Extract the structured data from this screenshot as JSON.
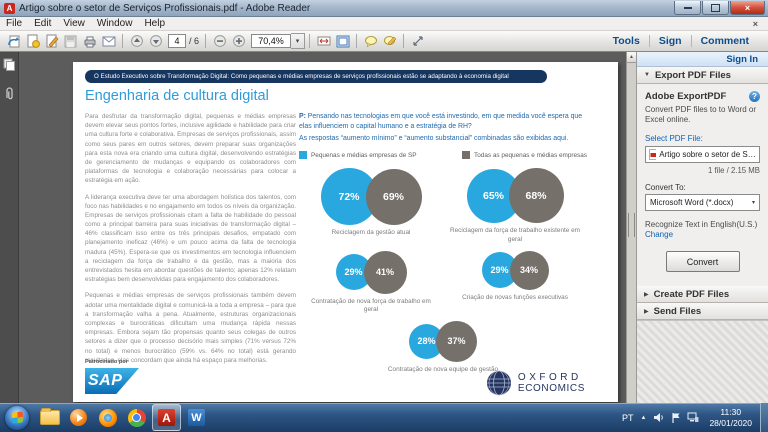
{
  "window": {
    "title": "Artigo sobre o setor de Serviços Profissionais.pdf - Adobe Reader"
  },
  "menu": {
    "items": [
      "File",
      "Edit",
      "View",
      "Window",
      "Help"
    ]
  },
  "toolbar": {
    "page_current": "4",
    "page_total": "/ 6",
    "zoom_level": "70,4%"
  },
  "tabs": {
    "tools": "Tools",
    "sign": "Sign",
    "comment": "Comment"
  },
  "icons": {
    "collapse": "▼",
    "expand": "▶",
    "dropdown": "▾",
    "tray_up": "▲",
    "close_glyph": "×",
    "help_glyph": "?",
    "scroll_up": "▲",
    "reader_glyph": "A",
    "word_glyph": "W",
    "sign_in_label": "Sign In"
  },
  "right_panel": {
    "sign_in": "Sign In",
    "export_section": "Export PDF Files",
    "create_section": "Create PDF Files",
    "send_section": "Send Files",
    "export": {
      "app_title": "Adobe ExportPDF",
      "description": "Convert PDF files to to Word or Excel online.",
      "select_label": "Select PDF File:",
      "file_name": "Artigo sobre o setor de Serviços...",
      "file_meta": "1 file / 2.15 MB",
      "convert_to_label": "Convert To:",
      "convert_format": "Microsoft Word (*.docx)",
      "recognize_text": "Recognize Text in English(U.S.)",
      "change_link": "Change",
      "convert_button": "Convert"
    }
  },
  "document": {
    "banner": "O Estudo Executivo sobre Transformação Digital: Como pequenas e médias empresas de serviços profissionais estão se adaptando à economia digital",
    "title": "Engenharia de cultura digital",
    "paragraphs": [
      "Para desfrutar da transformação digital, pequenas e médias empresas devem elevar seus pontos fortes, inclusive agilidade e habilidade para criar uma cultura forte e colaborativa. Empresas de serviços profissionais, assim como seus pares em outros setores, devem preparar suas organizações para esta nova era criando uma cultura digital, desenvolvendo estratégias de gerenciamento de mudanças e equipando os colaboradores com plataformas de tecnologia e colaboração necessárias para colocar a estratégia em ação.",
      "A liderança executiva deve ter uma abordagem holística dos talentos, com foco nas habilidades e no engajamento em todos os níveis da organização. Empresas de serviços profissionais citam a falta de habilidade do pessoal como a principal barreira para suas iniciativas de transformação digital – 46% classificam isso entre os três principais desafios, empatado com planejamento ineficaz (46%) e um pouco acima da falta de tecnologia madura (45%). Espera-se que os investimentos em tecnologia influenciem a reciclagem da força de trabalho e da gestão, mas a maioria dos entrevistados hesita em abordar questões de talento; apenas 12% relatam estratégias bem desenvolvidas para engajamento dos colaboradores.",
      "Pequenas e médias empresas de serviços profissionais também devem adotar uma mentalidade digital e comunicá-la a toda a empresa – para que a transformação valha a pena. Atualmente, estruturas organizacionais complexas e burocráticas dificultam uma mudança rápida nessas empresas. Embora sejam tão propensas quanto seus colegas de outros setores a dizer que o processo decisório mais simples (71% versus 72% no total) e menos burocrático (59% vs. 64% no total) está gerando resultados, elas concordam que ainda há espaço para melhorias."
    ],
    "question_prefix": "P:",
    "question": " Pensando nas tecnologias em que você está investindo, em que medida você espera que elas influenciem o capital humano e a estratégia de RH?",
    "question_note": "As respostas “aumento mínimo” e “aumento substancial” combinadas são exibidas aqui.",
    "legend": [
      {
        "label": "Pequenas e médias empresas de SP",
        "color": "#29a8e0"
      },
      {
        "label": "Todas as pequenas e médias empresas",
        "color": "#75706a"
      }
    ],
    "sponsor_label": "Patrocinado por",
    "sap_logo_text": "SAP",
    "oxford_line1": "OXFORD",
    "oxford_line2": "ECONOMICS"
  },
  "chart_data": {
    "type": "venn-pairs",
    "series": [
      "Pequenas e médias empresas de SP",
      "Todas as pequenas e médias empresas"
    ],
    "colors": {
      "sp": "#29a8e0",
      "all": "#75706a"
    },
    "pairs": [
      {
        "label": "Reciclagem da gestão atual",
        "sp": 72,
        "all": 69
      },
      {
        "label": "Reciclagem da força de trabalho existente em geral",
        "sp": 65,
        "all": 68
      },
      {
        "label": "Contratação de nova força de trabalho em geral",
        "sp": 29,
        "all": 41
      },
      {
        "label": "Criação de novas funções executivas",
        "sp": 29,
        "all": 34
      },
      {
        "label": "Contratação de nova equipe de gestão",
        "sp": 28,
        "all": 37
      }
    ]
  },
  "taskbar": {
    "tray_lang": "PT",
    "time": "11:30",
    "date": "28/01/2020"
  }
}
